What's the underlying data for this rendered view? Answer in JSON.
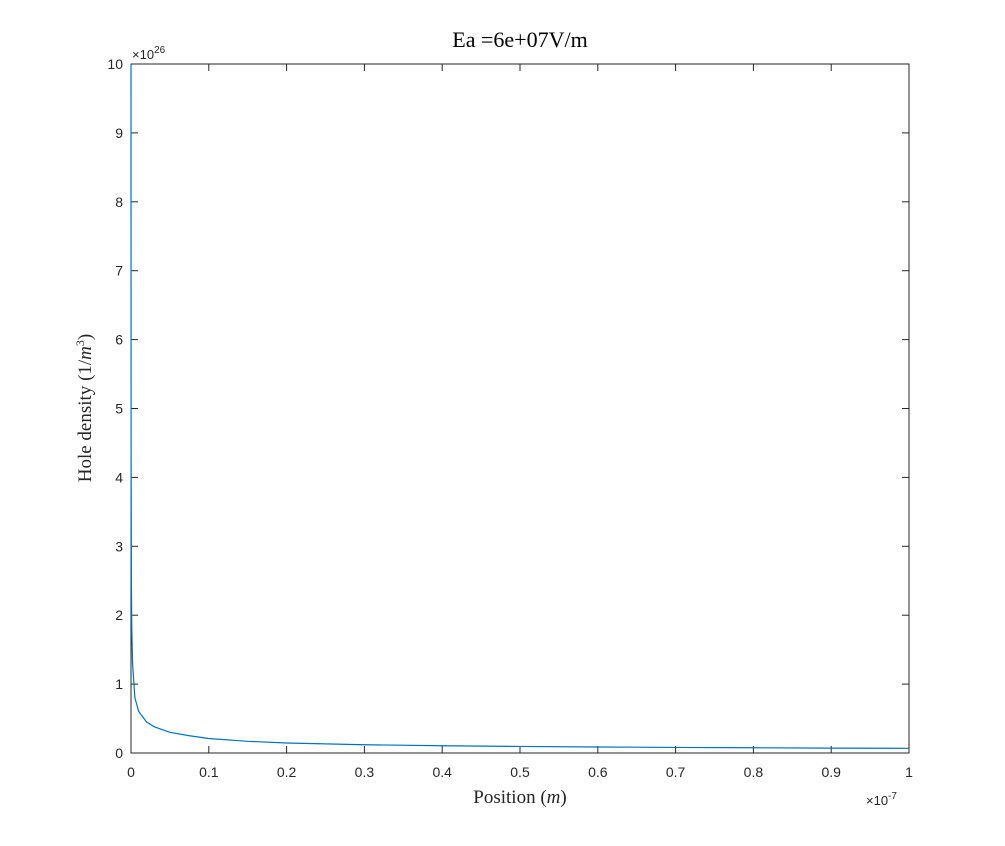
{
  "chart_data": {
    "type": "line",
    "title": "Ea =6e+07V/m",
    "xlabel": "Position (m)",
    "ylabel": "Hole density (1/m³)",
    "xlabel_parts": {
      "before": "Position (",
      "var": "m",
      "after": ")"
    },
    "ylabel_parts": {
      "before": "Hole density (1/",
      "var": "m",
      "sup": "3",
      "after": ")"
    },
    "x_multiplier": {
      "base": "×10",
      "exp": "-7"
    },
    "y_multiplier": {
      "base": "×10",
      "exp": "26"
    },
    "xlim": [
      0,
      1e-07
    ],
    "ylim": [
      0,
      1e+27
    ],
    "x_ticks": [
      0,
      1e-08,
      2e-08,
      3e-08,
      4e-08,
      5e-08,
      6e-08,
      7e-08,
      8e-08,
      9e-08,
      1e-07
    ],
    "x_tick_labels": [
      "0",
      "0.1",
      "0.2",
      "0.3",
      "0.4",
      "0.5",
      "0.6",
      "0.7",
      "0.8",
      "0.9",
      "1"
    ],
    "y_ticks": [
      0,
      1e+26,
      2e+26,
      3e+26,
      4e+26,
      5e+26,
      6e+26,
      7e+26,
      8e+26,
      9e+26,
      1e+27
    ],
    "y_tick_labels": [
      "0",
      "1",
      "2",
      "3",
      "4",
      "5",
      "6",
      "7",
      "8",
      "9",
      "10"
    ],
    "grid": false,
    "series": [
      {
        "color": "#0072BD",
        "x": [
          0,
          1e-11,
          5e-11,
          1e-10,
          2e-10,
          5e-10,
          1e-09,
          2e-09,
          3e-09,
          5e-09,
          7.5e-09,
          1e-08,
          1.5e-08,
          2e-08,
          3e-08,
          4e-08,
          5e-08,
          6e-08,
          7e-08,
          8e-08,
          9e-08,
          1e-07
        ],
        "y": [
          1e+27,
          4.5e+26,
          2.5e+26,
          1.8e+26,
          1.3e+26,
          8e+25,
          6e+25,
          4.5e+25,
          3.8e+25,
          3e+25,
          2.5e+25,
          2.1e+25,
          1.7e+25,
          1.45e+25,
          1.2e+25,
          1.05e+25,
          9.5e+24,
          8.7e+24,
          8.1e+24,
          7.6e+24,
          7.1e+24,
          6.8e+24
        ]
      }
    ]
  }
}
